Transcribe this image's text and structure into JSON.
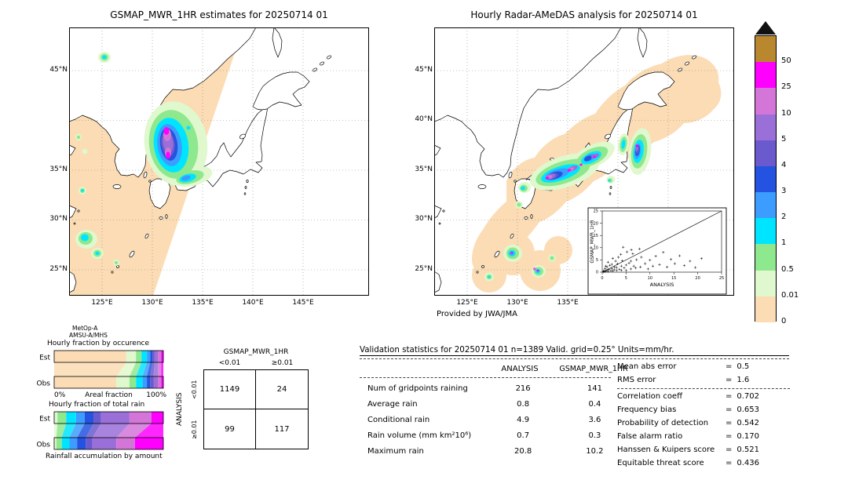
{
  "glue": {
    "eq": "="
  },
  "sensor": {
    "line1": "MetOp-A",
    "line2": "AMSU-A/MHS"
  },
  "chart_data": [
    {
      "type": "map",
      "name": "gsmap-estimates-map",
      "title": "GSMAP_MWR_1HR estimates for 20250714 01",
      "lat_ticks": [
        "45°N",
        "35°N",
        "30°N",
        "25°N"
      ],
      "lon_ticks": [
        "125°E",
        "130°E",
        "135°E",
        "140°E",
        "145°E"
      ]
    },
    {
      "type": "map",
      "name": "radar-amedas-map",
      "title": "Hourly Radar-AMeDAS analysis for 20250714 01",
      "lat_ticks": [
        "45°N",
        "40°N",
        "35°N",
        "30°N",
        "25°N"
      ],
      "lon_ticks": [
        "125°E",
        "130°E",
        "135°E"
      ],
      "credit": "Provided by JWA/JMA"
    },
    {
      "type": "scatter",
      "name": "inset-scatter",
      "xlabel": "ANALYSIS",
      "ylabel": "GSMAP_MWR_1HR",
      "xlim": [
        0,
        25
      ],
      "ylim": [
        0,
        25
      ],
      "x_ticks": [
        0,
        5,
        10,
        15,
        20,
        25
      ],
      "y_ticks": [
        0,
        5,
        10,
        15,
        20,
        25
      ],
      "points": [
        [
          0.2,
          0.1
        ],
        [
          0.3,
          0.6
        ],
        [
          0.5,
          0.2
        ],
        [
          0.6,
          1.4
        ],
        [
          0.8,
          0.4
        ],
        [
          1,
          0.9
        ],
        [
          1,
          2.2
        ],
        [
          1.2,
          0.3
        ],
        [
          1.4,
          1.1
        ],
        [
          1.6,
          2.8
        ],
        [
          1.8,
          0.6
        ],
        [
          2,
          1.4
        ],
        [
          2,
          3.2
        ],
        [
          2.2,
          0.5
        ],
        [
          2.5,
          1
        ],
        [
          2.6,
          2.1
        ],
        [
          2.8,
          4.5
        ],
        [
          3,
          0.7
        ],
        [
          3,
          1.9
        ],
        [
          3.2,
          3.4
        ],
        [
          3.4,
          6.1
        ],
        [
          3.6,
          1.2
        ],
        [
          4,
          0.8
        ],
        [
          4,
          2.5
        ],
        [
          4.2,
          4.7
        ],
        [
          4.4,
          10.2
        ],
        [
          4.6,
          1.7
        ],
        [
          5,
          0.7
        ],
        [
          5,
          2.9
        ],
        [
          5.2,
          8.3
        ],
        [
          5.6,
          3.7
        ],
        [
          6,
          1.3
        ],
        [
          6,
          4.5
        ],
        [
          6.4,
          7.5
        ],
        [
          6.6,
          2.5
        ],
        [
          7,
          1.7
        ],
        [
          7.2,
          5.1
        ],
        [
          7.8,
          9.5
        ],
        [
          8,
          2.1
        ],
        [
          8.2,
          6.1
        ],
        [
          9,
          3.5
        ],
        [
          9.6,
          1.3
        ],
        [
          10,
          4.9
        ],
        [
          10.6,
          2.5
        ],
        [
          11.2,
          6.5
        ],
        [
          12,
          3.1
        ],
        [
          12.8,
          8.1
        ],
        [
          13.6,
          2.1
        ],
        [
          14.4,
          5.2
        ],
        [
          15.2,
          3.5
        ],
        [
          16.2,
          6.7
        ],
        [
          17.2,
          2.7
        ],
        [
          18.4,
          4.5
        ],
        [
          19.5,
          1.9
        ],
        [
          20.8,
          5.6
        ],
        [
          1.2,
          4.1
        ],
        [
          2.2,
          5.6
        ],
        [
          0.7,
          2.5
        ],
        [
          3.9,
          7.3
        ],
        [
          6.1,
          9.1
        ]
      ]
    },
    {
      "type": "table",
      "name": "contingency-table",
      "title": "GSMAP_MWR_1HR",
      "row_axis_label": "ANALYSIS",
      "col_headers": [
        "<0.01",
        "≥0.01"
      ],
      "row_headers": [
        "<0.01",
        "≥0.01"
      ],
      "cells": [
        [
          "1149",
          "24"
        ],
        [
          "99",
          "117"
        ]
      ]
    },
    {
      "type": "table",
      "name": "validation-statistics",
      "title": "Validation statistics for 20250714 01  n=1389 Valid. grid=0.25° Units=mm/hr.",
      "col_headers": [
        "ANALYSIS",
        "GSMAP_MWR_1HR"
      ],
      "rows": [
        {
          "label": "Num of gridpoints raining",
          "values": [
            "216",
            "141"
          ]
        },
        {
          "label": "Average rain",
          "values": [
            "0.8",
            "0.4"
          ]
        },
        {
          "label": "Conditional rain",
          "values": [
            "4.9",
            "3.6"
          ]
        },
        {
          "label": "Rain volume (mm km²10⁶)",
          "values": [
            "0.7",
            "0.3"
          ]
        },
        {
          "label": "Maximum rain",
          "values": [
            "20.8",
            "10.2"
          ]
        }
      ]
    },
    {
      "type": "table",
      "name": "skill-scores",
      "rows": [
        {
          "label": "Mean abs error",
          "value": "0.5"
        },
        {
          "label": "RMS error",
          "value": "1.6"
        },
        {
          "label": "Correlation coeff",
          "value": "0.702"
        },
        {
          "label": "Frequency bias",
          "value": "0.653"
        },
        {
          "label": "Probability of detection",
          "value": "0.542"
        },
        {
          "label": "False alarm ratio",
          "value": "0.170"
        },
        {
          "label": "Hanssen & Kuipers score",
          "value": "0.521"
        },
        {
          "label": "Equitable threat score",
          "value": "0.436"
        }
      ]
    },
    {
      "type": "bar",
      "name": "hourly-fraction-by-occurence",
      "title": "Hourly fraction by occurence",
      "axis": {
        "left": "0%",
        "center": "Areal fraction",
        "right": "100%"
      },
      "rows": [
        {
          "label": "Est",
          "segments": [
            {
              "color": "#fbdcb4",
              "pct": 66
            },
            {
              "color": "#dff8cd",
              "pct": 9
            },
            {
              "color": "#8ee88e",
              "pct": 5
            },
            {
              "color": "#00e5ff",
              "pct": 5
            },
            {
              "color": "#3c9cff",
              "pct": 3
            },
            {
              "color": "#2353e0",
              "pct": 2
            },
            {
              "color": "#6a5acd",
              "pct": 2
            },
            {
              "color": "#9a6fd8",
              "pct": 3
            },
            {
              "color": "#d476d8",
              "pct": 3
            },
            {
              "color": "#ff00ff",
              "pct": 2
            }
          ]
        },
        {
          "label": "Obs",
          "segments": [
            {
              "color": "#fbdcb4",
              "pct": 57
            },
            {
              "color": "#dff8cd",
              "pct": 12
            },
            {
              "color": "#8ee88e",
              "pct": 6
            },
            {
              "color": "#00e5ff",
              "pct": 6
            },
            {
              "color": "#3c9cff",
              "pct": 4
            },
            {
              "color": "#2353e0",
              "pct": 3
            },
            {
              "color": "#6a5acd",
              "pct": 3
            },
            {
              "color": "#9a6fd8",
              "pct": 4
            },
            {
              "color": "#d476d8",
              "pct": 3
            },
            {
              "color": "#ff00ff",
              "pct": 2
            }
          ]
        }
      ]
    },
    {
      "type": "bar",
      "name": "hourly-fraction-of-total-rain",
      "title": "Hourly fraction of total rain",
      "caption": "Rainfall accumulation by amount",
      "rows": [
        {
          "label": "Est",
          "segments": [
            {
              "color": "#dff8cd",
              "pct": 3
            },
            {
              "color": "#8ee88e",
              "pct": 8
            },
            {
              "color": "#00e5ff",
              "pct": 9
            },
            {
              "color": "#3c9cff",
              "pct": 8
            },
            {
              "color": "#2353e0",
              "pct": 8
            },
            {
              "color": "#6a5acd",
              "pct": 7
            },
            {
              "color": "#9a6fd8",
              "pct": 26
            },
            {
              "color": "#d476d8",
              "pct": 20
            },
            {
              "color": "#ff00ff",
              "pct": 11
            }
          ]
        },
        {
          "label": "Obs",
          "segments": [
            {
              "color": "#dff8cd",
              "pct": 2
            },
            {
              "color": "#8ee88e",
              "pct": 5
            },
            {
              "color": "#00e5ff",
              "pct": 7
            },
            {
              "color": "#3c9cff",
              "pct": 7
            },
            {
              "color": "#2353e0",
              "pct": 8
            },
            {
              "color": "#6a5acd",
              "pct": 6
            },
            {
              "color": "#9a6fd8",
              "pct": 22
            },
            {
              "color": "#d476d8",
              "pct": 17
            },
            {
              "color": "#ff00ff",
              "pct": 26
            }
          ]
        }
      ]
    },
    {
      "type": "legend",
      "name": "rain-rate-colorbar",
      "units": "mm/hr",
      "labels_top_to_bottom": [
        "50",
        "25",
        "10",
        "5",
        "4",
        "3",
        "2",
        "1",
        "0.5",
        "0.01",
        "0"
      ],
      "band_colors_top_to_bottom": [
        "#b9872e",
        "#ff00ff",
        "#d476d8",
        "#9a6fd8",
        "#6a5acd",
        "#2353e0",
        "#3c9cff",
        "#00e5ff",
        "#8ee88e",
        "#dff8cd",
        "#fbdcb4"
      ],
      "overflow_marker_color": "#111111"
    }
  ]
}
